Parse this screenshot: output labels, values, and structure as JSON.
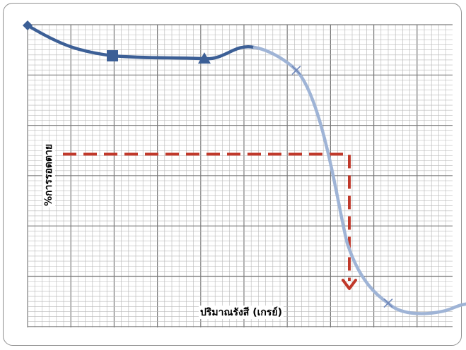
{
  "chart_data": {
    "type": "line",
    "title": "",
    "xlabel": "ปริมาณรังสี (เกรย์)",
    "ylabel": "%การรอดตาย",
    "grid": true,
    "legend": "none",
    "x_range": [
      0,
      12
    ],
    "y_range": [
      0,
      100
    ],
    "series": [
      {
        "color_solid": "#3c5f96",
        "color_light": "#9fb4d6",
        "points": [
          {
            "x": 0,
            "y": 100,
            "marker": "diamond"
          },
          {
            "x": 2.4,
            "y": 89.5,
            "marker": "square"
          },
          {
            "x": 5,
            "y": 88.5,
            "marker": "triangle"
          },
          {
            "x": 7.6,
            "y": 84.5,
            "marker": "x"
          },
          {
            "x": 10.2,
            "y": 4,
            "marker": "x"
          },
          {
            "x": 12.6,
            "y": 4,
            "marker": "circle"
          }
        ]
      }
    ],
    "annotation": {
      "type": "dashed-arrow",
      "color": "#c0392b",
      "y_level": 55.5,
      "x_level": 9.1
    }
  }
}
